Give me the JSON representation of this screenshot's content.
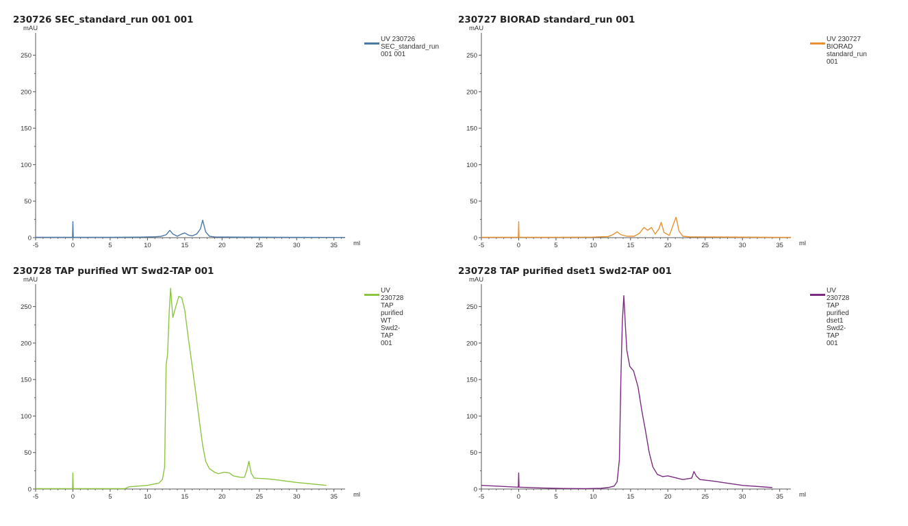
{
  "chart_data": [
    {
      "type": "line",
      "title": "230726 SEC_standard_run 001 001",
      "ylabel": "mAU",
      "xlabel": "ml",
      "xlim": [
        -5,
        36.5
      ],
      "ylim": [
        0,
        275
      ],
      "x_ticks": [
        -5,
        0,
        5,
        10,
        15,
        20,
        25,
        30,
        35
      ],
      "y_ticks": [
        0,
        50,
        100,
        150,
        200,
        250
      ],
      "grid": false,
      "legend_position": "top-right",
      "color": "#4a78a8",
      "series": [
        {
          "name": "UV 230726 SEC_standard_run 001 001",
          "legend_lines": [
            "UV 230726",
            "SEC_standard_run",
            "001 001"
          ],
          "points": [
            [
              -5,
              0.5
            ],
            [
              -0.05,
              0.5
            ],
            [
              0,
              22
            ],
            [
              0.05,
              0.5
            ],
            [
              5,
              0.5
            ],
            [
              9,
              0.8
            ],
            [
              11,
              1.2
            ],
            [
              11.8,
              1.8
            ],
            [
              12.5,
              4
            ],
            [
              13,
              10
            ],
            [
              13.4,
              5
            ],
            [
              14,
              2
            ],
            [
              14.6,
              5
            ],
            [
              15,
              6.5
            ],
            [
              15.5,
              3.5
            ],
            [
              16,
              2.5
            ],
            [
              16.6,
              5
            ],
            [
              17.1,
              12
            ],
            [
              17.4,
              24
            ],
            [
              17.8,
              8
            ],
            [
              18.3,
              2
            ],
            [
              19,
              1
            ],
            [
              22,
              0.7
            ],
            [
              28,
              0.5
            ],
            [
              36.5,
              0.3
            ]
          ]
        }
      ]
    },
    {
      "type": "line",
      "title": "230727 BIORAD standard_run 001",
      "ylabel": "mAU",
      "xlabel": "ml",
      "xlim": [
        -5,
        36.5
      ],
      "ylim": [
        0,
        275
      ],
      "x_ticks": [
        -5,
        0,
        5,
        10,
        15,
        20,
        25,
        30,
        35
      ],
      "y_ticks": [
        0,
        50,
        100,
        150,
        200,
        250
      ],
      "grid": false,
      "legend_position": "top-right",
      "color": "#e8912e",
      "series": [
        {
          "name": "UV 230727 BIORAD standard_run 001",
          "legend_lines": [
            "UV 230727 BIORAD",
            "standard_run 001"
          ],
          "points": [
            [
              -5,
              0.5
            ],
            [
              -0.05,
              0.5
            ],
            [
              0,
              22
            ],
            [
              0.05,
              0.5
            ],
            [
              5,
              0.5
            ],
            [
              10,
              0.8
            ],
            [
              12,
              1.5
            ],
            [
              12.6,
              4
            ],
            [
              13.2,
              8
            ],
            [
              13.7,
              4
            ],
            [
              14.5,
              2
            ],
            [
              15.5,
              2
            ],
            [
              16.2,
              6
            ],
            [
              16.8,
              14
            ],
            [
              17.3,
              10
            ],
            [
              17.8,
              14
            ],
            [
              18.3,
              5
            ],
            [
              18.8,
              12
            ],
            [
              19.1,
              21
            ],
            [
              19.5,
              7
            ],
            [
              20.2,
              3
            ],
            [
              20.8,
              20
            ],
            [
              21.1,
              28
            ],
            [
              21.5,
              9
            ],
            [
              22,
              2
            ],
            [
              23,
              1
            ],
            [
              30,
              0.7
            ],
            [
              36.5,
              0.4
            ]
          ]
        }
      ]
    },
    {
      "type": "line",
      "title": "230728 TAP purified WT Swd2-TAP 001",
      "ylabel": "mAU",
      "xlabel": "ml",
      "xlim": [
        -5,
        36.5
      ],
      "ylim": [
        0,
        275
      ],
      "x_ticks": [
        -5,
        0,
        5,
        10,
        15,
        20,
        25,
        30,
        35
      ],
      "y_ticks": [
        0,
        50,
        100,
        150,
        200,
        250
      ],
      "grid": false,
      "legend_position": "top-right",
      "color": "#8cc63f",
      "series": [
        {
          "name": "UV 230728 TAP purified WT Swd2-TAP 001",
          "legend_lines": [
            "UV 230728 TAP",
            "purified WT Swd2-",
            "TAP 001"
          ],
          "points": [
            [
              -5,
              0.5
            ],
            [
              -0.05,
              0.5
            ],
            [
              0,
              22
            ],
            [
              0.05,
              0.5
            ],
            [
              7,
              0.5
            ],
            [
              7.5,
              3
            ],
            [
              10,
              5
            ],
            [
              11.5,
              8
            ],
            [
              12,
              13
            ],
            [
              12.3,
              30
            ],
            [
              12.5,
              170
            ],
            [
              12.7,
              185
            ],
            [
              12.9,
              240
            ],
            [
              13.1,
              275
            ],
            [
              13.4,
              235
            ],
            [
              13.8,
              250
            ],
            [
              14.2,
              264
            ],
            [
              14.6,
              262
            ],
            [
              15,
              245
            ],
            [
              15.5,
              205
            ],
            [
              16,
              168
            ],
            [
              16.5,
              130
            ],
            [
              17,
              90
            ],
            [
              17.4,
              60
            ],
            [
              17.8,
              38
            ],
            [
              18.3,
              28
            ],
            [
              19,
              23
            ],
            [
              19.5,
              21
            ],
            [
              20.3,
              23
            ],
            [
              21,
              22
            ],
            [
              21.5,
              18
            ],
            [
              22.5,
              16
            ],
            [
              23,
              16
            ],
            [
              23.3,
              25
            ],
            [
              23.6,
              38
            ],
            [
              23.9,
              22
            ],
            [
              24.3,
              15
            ],
            [
              26,
              14
            ],
            [
              27,
              13
            ],
            [
              30,
              9
            ],
            [
              34,
              5
            ]
          ]
        }
      ]
    },
    {
      "type": "line",
      "title": "230728 TAP purified dset1 Swd2-TAP 001",
      "ylabel": "mAU",
      "xlabel": "ml",
      "xlim": [
        -5,
        36.5
      ],
      "ylim": [
        0,
        275
      ],
      "x_ticks": [
        -5,
        0,
        5,
        10,
        15,
        20,
        25,
        30,
        35
      ],
      "y_ticks": [
        0,
        50,
        100,
        150,
        200,
        250
      ],
      "grid": false,
      "legend_position": "top-right",
      "color": "#7b2a82",
      "series": [
        {
          "name": "UV 230728 TAP purified dset1 Swd2-TAP 001",
          "legend_lines": [
            "UV 230728 TAP",
            "purified dset1 Swd2-",
            "TAP 001"
          ],
          "points": [
            [
              -5,
              5
            ],
            [
              -0.05,
              2.5
            ],
            [
              0,
              22
            ],
            [
              0.05,
              2.5
            ],
            [
              3,
              1.5
            ],
            [
              6,
              0.8
            ],
            [
              9,
              0.5
            ],
            [
              11,
              1
            ],
            [
              12,
              2
            ],
            [
              12.8,
              4
            ],
            [
              13.2,
              10
            ],
            [
              13.5,
              40
            ],
            [
              13.7,
              150
            ],
            [
              13.9,
              230
            ],
            [
              14.1,
              265
            ],
            [
              14.3,
              225
            ],
            [
              14.5,
              190
            ],
            [
              14.9,
              168
            ],
            [
              15.4,
              162
            ],
            [
              16,
              140
            ],
            [
              16.5,
              108
            ],
            [
              17,
              80
            ],
            [
              17.5,
              50
            ],
            [
              18,
              30
            ],
            [
              18.6,
              20
            ],
            [
              19.3,
              17
            ],
            [
              20,
              18
            ],
            [
              20.8,
              16
            ],
            [
              22,
              13
            ],
            [
              23.2,
              15
            ],
            [
              23.5,
              24
            ],
            [
              23.8,
              18
            ],
            [
              24.3,
              13
            ],
            [
              26,
              11
            ],
            [
              30,
              5
            ],
            [
              34,
              2
            ]
          ]
        }
      ]
    }
  ]
}
